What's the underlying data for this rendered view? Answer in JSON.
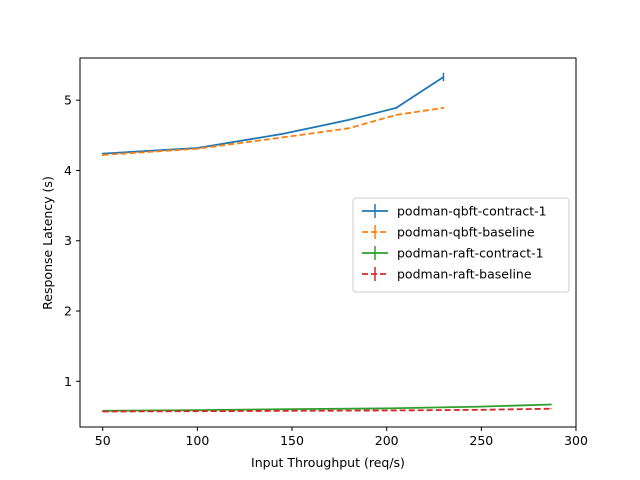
{
  "chart_data": {
    "type": "line",
    "title": "",
    "xlabel": "Input Throughput (req/s)",
    "ylabel": "Response Latency (s)",
    "xlim": [
      38,
      300
    ],
    "ylim": [
      0.35,
      5.6
    ],
    "x_ticks": [
      50,
      100,
      150,
      200,
      250,
      300
    ],
    "y_ticks": [
      1,
      2,
      3,
      4,
      5
    ],
    "x_tick_labels": [
      "50",
      "100",
      "150",
      "200",
      "250",
      "300"
    ],
    "y_tick_labels": [
      "1",
      "2",
      "3",
      "4",
      "5"
    ],
    "grid": false,
    "legend_position": "center-right",
    "series": [
      {
        "name": "podman-qbft-contract-1",
        "color": "#1f77b4",
        "dash": "solid",
        "x": [
          50,
          100,
          145,
          180,
          205,
          230
        ],
        "y": [
          4.24,
          4.32,
          4.52,
          4.72,
          4.89,
          5.33
        ],
        "yerr": [
          0.01,
          0.01,
          0.01,
          0.01,
          0.01,
          0.06
        ]
      },
      {
        "name": "podman-qbft-baseline",
        "color": "#ff7f0e",
        "dash": "dashed",
        "x": [
          50,
          100,
          145,
          180,
          205,
          230
        ],
        "y": [
          4.22,
          4.31,
          4.47,
          4.6,
          4.79,
          4.89
        ],
        "yerr": [
          0.01,
          0.01,
          0.01,
          0.01,
          0.01,
          0.01
        ]
      },
      {
        "name": "podman-raft-contract-1",
        "color": "#2ca02c",
        "dash": "solid",
        "x": [
          50,
          100,
          150,
          200,
          250,
          287
        ],
        "y": [
          0.58,
          0.59,
          0.605,
          0.615,
          0.64,
          0.67
        ],
        "yerr": [
          0.005,
          0.005,
          0.005,
          0.005,
          0.005,
          0.005
        ]
      },
      {
        "name": "podman-raft-baseline",
        "color": "#d62728",
        "dash": "dashed",
        "x": [
          50,
          100,
          150,
          200,
          250,
          287
        ],
        "y": [
          0.57,
          0.575,
          0.58,
          0.585,
          0.595,
          0.61
        ],
        "yerr": [
          0.005,
          0.005,
          0.005,
          0.005,
          0.005,
          0.005
        ]
      }
    ]
  }
}
